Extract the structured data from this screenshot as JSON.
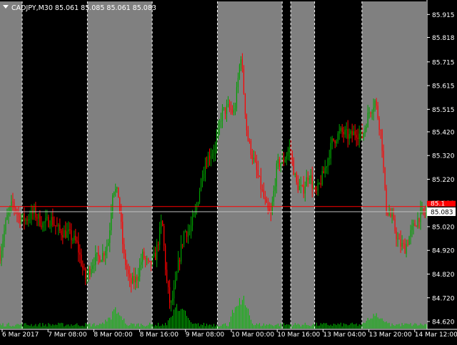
{
  "window": {
    "title": "CADJPY,M30  85.061 85.085 85.061 85.083",
    "menu_icon": "triangle-down-icon"
  },
  "price": {
    "current": 85.083,
    "current_label": "85.083",
    "ask": 85.105,
    "ask_label": "85.1"
  },
  "colors": {
    "background": "#000000",
    "session_fill": "#808080",
    "bull_bar": "#00a000",
    "bear_bar": "#ff0000",
    "volume": "#00c000",
    "axis_text": "#ffffff",
    "ask_line": "#ff0000",
    "bid_line": "#c0c0c0",
    "current_tag_bg": "#ffffff",
    "current_tag_text": "#000000",
    "ask_tag_bg": "#ff0000"
  },
  "chart_data": {
    "type": "candlestick",
    "symbol": "CADJPY",
    "timeframe": "M30",
    "ylim": [
      84.59,
      85.97
    ],
    "y_ticks": [
      {
        "value": 85.915,
        "label": "85.915"
      },
      {
        "value": 85.818,
        "label": "85.818"
      },
      {
        "value": 85.715,
        "label": "85.715"
      },
      {
        "value": 85.615,
        "label": "85.615"
      },
      {
        "value": 85.515,
        "label": "85.515"
      },
      {
        "value": 85.42,
        "label": "85.420"
      },
      {
        "value": 85.32,
        "label": "85.320"
      },
      {
        "value": 85.22,
        "label": "85.220"
      },
      {
        "value": 85.12,
        "label": "85.120"
      },
      {
        "value": 85.02,
        "label": "85.020"
      },
      {
        "value": 84.92,
        "label": "84.920"
      },
      {
        "value": 84.82,
        "label": "84.820"
      },
      {
        "value": 84.72,
        "label": "84.720"
      },
      {
        "value": 84.62,
        "label": "84.620"
      }
    ],
    "x_labels": [
      "6 Mar 2017",
      "7 Mar 08:00",
      "8 Mar 00:00",
      "8 Mar 16:00",
      "9 Mar 08:00",
      "10 Mar 00:00",
      "10 Mar 16:00",
      "13 Mar 04:00",
      "13 Mar 20:00",
      "14 Mar 12:00"
    ],
    "session_bands": [
      {
        "from": 0,
        "to": 0.052
      },
      {
        "from": 0.205,
        "to": 0.357
      },
      {
        "from": 0.51,
        "to": 0.662
      },
      {
        "from": 0.682,
        "to": 0.738
      },
      {
        "from": 0.849,
        "to": 1.0
      }
    ],
    "price_path": [
      [
        0.0,
        84.9
      ],
      [
        0.015,
        85.05
      ],
      [
        0.03,
        85.12
      ],
      [
        0.045,
        85.06
      ],
      [
        0.06,
        85.05
      ],
      [
        0.08,
        85.08
      ],
      [
        0.1,
        85.03
      ],
      [
        0.12,
        85.05
      ],
      [
        0.14,
        85.0
      ],
      [
        0.16,
        84.99
      ],
      [
        0.18,
        84.95
      ],
      [
        0.2,
        84.8
      ],
      [
        0.22,
        84.88
      ],
      [
        0.24,
        84.9
      ],
      [
        0.255,
        84.96
      ],
      [
        0.265,
        85.19
      ],
      [
        0.278,
        85.15
      ],
      [
        0.29,
        84.9
      ],
      [
        0.305,
        84.78
      ],
      [
        0.32,
        84.8
      ],
      [
        0.335,
        84.9
      ],
      [
        0.35,
        84.85
      ],
      [
        0.365,
        84.9
      ],
      [
        0.38,
        85.05
      ],
      [
        0.39,
        84.8
      ],
      [
        0.4,
        84.68
      ],
      [
        0.41,
        84.76
      ],
      [
        0.42,
        84.88
      ],
      [
        0.432,
        85.0
      ],
      [
        0.445,
        85.0
      ],
      [
        0.46,
        85.09
      ],
      [
        0.475,
        85.25
      ],
      [
        0.49,
        85.32
      ],
      [
        0.505,
        85.35
      ],
      [
        0.52,
        85.5
      ],
      [
        0.535,
        85.52
      ],
      [
        0.55,
        85.5
      ],
      [
        0.565,
        85.75
      ],
      [
        0.58,
        85.4
      ],
      [
        0.595,
        85.3
      ],
      [
        0.61,
        85.2
      ],
      [
        0.625,
        85.1
      ],
      [
        0.635,
        85.06
      ],
      [
        0.65,
        85.28
      ],
      [
        0.665,
        85.3
      ],
      [
        0.68,
        85.35
      ],
      [
        0.695,
        85.2
      ],
      [
        0.71,
        85.17
      ],
      [
        0.725,
        85.25
      ],
      [
        0.74,
        85.15
      ],
      [
        0.76,
        85.25
      ],
      [
        0.78,
        85.38
      ],
      [
        0.8,
        85.42
      ],
      [
        0.82,
        85.4
      ],
      [
        0.835,
        85.42
      ],
      [
        0.85,
        85.4
      ],
      [
        0.865,
        85.5
      ],
      [
        0.88,
        85.55
      ],
      [
        0.895,
        85.4
      ],
      [
        0.905,
        85.1
      ],
      [
        0.92,
        85.05
      ],
      [
        0.935,
        84.95
      ],
      [
        0.95,
        84.93
      ],
      [
        0.965,
        85.0
      ],
      [
        0.985,
        85.07
      ],
      [
        1.0,
        85.08
      ]
    ],
    "volume_spikes": [
      {
        "at": 0.565,
        "level": 0.78
      },
      {
        "at": 0.27,
        "level": 0.35
      },
      {
        "at": 0.42,
        "level": 0.55
      },
      {
        "at": 0.88,
        "level": 0.3
      }
    ],
    "bar_count": 300
  }
}
